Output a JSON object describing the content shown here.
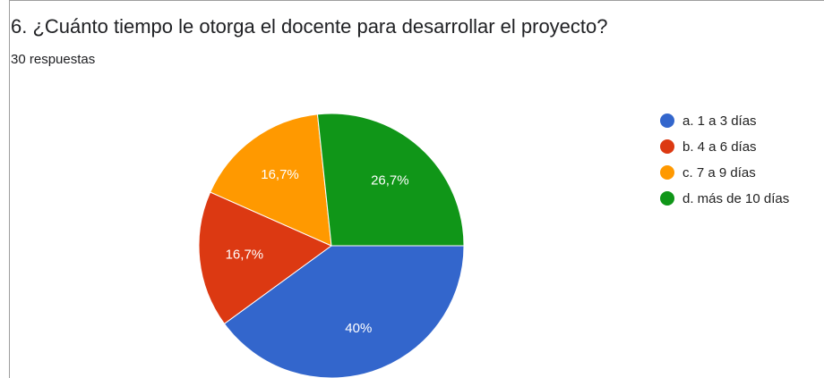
{
  "chart_data": {
    "type": "pie",
    "title": "6. ¿Cuánto tiempo le otorga el docente para desarrollar el proyecto?",
    "subtitle": "30 respuestas",
    "categories": [
      "a. 1 a 3 días",
      "b. 4 a 6 días",
      "c. 7 a 9 días",
      "d. más de 10 días"
    ],
    "values": [
      40,
      16.7,
      16.7,
      26.7
    ],
    "value_labels": [
      "40%",
      "16,7%",
      "16,7%",
      "26,7%"
    ],
    "colors": [
      "#3366cc",
      "#dc3912",
      "#ff9900",
      "#109618"
    ],
    "legend": "right"
  }
}
